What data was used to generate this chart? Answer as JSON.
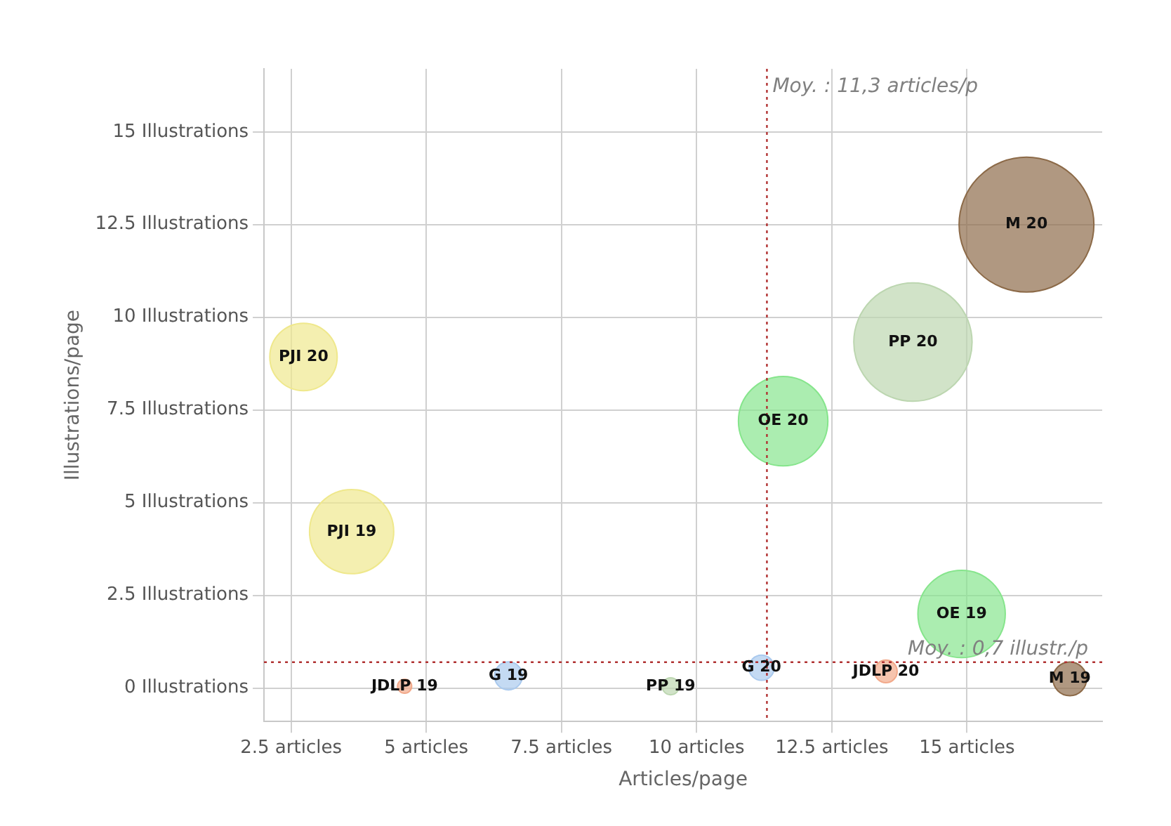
{
  "chart_data": {
    "type": "bubble",
    "xlabel": "Articles/page",
    "ylabel": "Illustrations/page",
    "x": [
      2.73,
      3.62,
      4.6,
      13.5,
      6.52,
      11.2,
      9.52,
      14.0,
      14.9,
      11.6,
      16.9,
      16.1
    ],
    "series": [
      {
        "values": [
          8.93,
          4.22,
          0.05,
          0.45,
          0.33,
          0.55,
          0.05,
          9.33,
          2.0,
          7.2,
          0.25,
          12.5
        ],
        "sizes": [
          0.25,
          0.39,
          0.011,
          0.028,
          0.043,
          0.035,
          0.016,
          0.77,
          0.42,
          0.44,
          0.0625,
          1
        ],
        "colors": [
          "#efe88c",
          "#efe88c",
          "#f2a98a",
          "#f2a98a",
          "#a9c9ee",
          "#a9c9ee",
          "#bcd6b0",
          "#bcd6b0",
          "#86e58c",
          "#86e58c",
          "#8c6a48",
          "#8c6a48"
        ],
        "value_labels": [
          "PJI 20",
          "PJI 19",
          "JDLP 19",
          "JDLP 20",
          "G 19",
          "G 20",
          "PP 19",
          "PP 20",
          "OE 19",
          "OE 20",
          "M 19",
          "M 20"
        ]
      }
    ],
    "xlim": [
      2,
      17.5
    ],
    "ylim": [
      -0.9,
      16.7
    ],
    "xticks": [
      {
        "value": 2.5,
        "label": "2.5 articles"
      },
      {
        "value": 5,
        "label": "5 articles"
      },
      {
        "value": 7.5,
        "label": "7.5 articles"
      },
      {
        "value": 10,
        "label": "10 articles"
      },
      {
        "value": 12.5,
        "label": "12.5 articles"
      },
      {
        "value": 15,
        "label": "15 articles"
      }
    ],
    "yticks": [
      {
        "value": 0,
        "label": "0 Illustrations"
      },
      {
        "value": 2.5,
        "label": "2.5 Illustrations"
      },
      {
        "value": 5,
        "label": "5 Illustrations"
      },
      {
        "value": 7.5,
        "label": "7.5 Illustrations"
      },
      {
        "value": 10,
        "label": "10 Illustrations"
      },
      {
        "value": 12.5,
        "label": "12.5 Illustrations"
      },
      {
        "value": 15,
        "label": "15 Illustrations"
      }
    ],
    "ref_lines": [
      {
        "axis": "x",
        "value": 11.3,
        "label": "Moy. : 11,3 articles/p",
        "color": "#b03030",
        "line_style": "dotted"
      },
      {
        "axis": "y",
        "value": 0.7,
        "label": "Moy. : 0,7 illustr./p",
        "color": "#b03030",
        "line_style": "dotted"
      }
    ],
    "grid": true,
    "legend": false
  }
}
